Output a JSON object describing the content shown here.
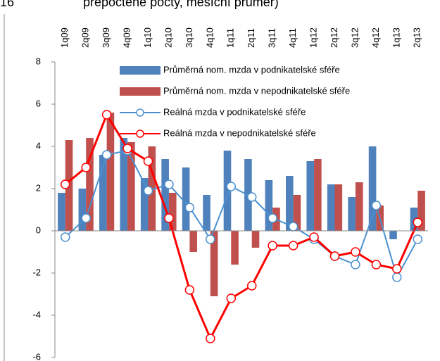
{
  "chart_data": {
    "type": "bar",
    "label": "16",
    "title": "přepočtené počty, měsíční průměr)",
    "categories": [
      "1q09",
      "2q09",
      "3q09",
      "4q09",
      "1q10",
      "2q10",
      "3q10",
      "4q10",
      "1q11",
      "2q11",
      "3q11",
      "4q11",
      "1q12",
      "2q12",
      "3q12",
      "4q12",
      "1q13",
      "2q13"
    ],
    "series": [
      {
        "name": "Průměrná nom. mzda v podnikatelské sféře",
        "type": "bar",
        "color": "#4f81bd",
        "values": [
          1.8,
          2.0,
          3.6,
          4.4,
          2.5,
          3.4,
          3.0,
          1.7,
          3.8,
          3.4,
          2.4,
          2.6,
          3.3,
          2.2,
          1.6,
          4.0,
          -0.4,
          1.1
        ]
      },
      {
        "name": "Průměrná nom. mzda v nepodnikatelské sféře",
        "type": "bar",
        "color": "#c0504d",
        "values": [
          4.3,
          4.4,
          5.6,
          4.2,
          4.0,
          1.8,
          -1.0,
          -3.1,
          -1.6,
          -0.8,
          1.1,
          1.7,
          3.4,
          2.2,
          2.3,
          1.2,
          0,
          1.9
        ]
      },
      {
        "name": "Reálná mzda v podnikatelské sféře",
        "type": "line",
        "color": "#4a90d0",
        "values": [
          -0.3,
          0.6,
          3.6,
          3.8,
          1.9,
          2.2,
          1.1,
          -0.4,
          2.1,
          1.6,
          0.6,
          0.2,
          -0.4,
          -1.2,
          -1.6,
          1.2,
          -2.2,
          -0.4
        ]
      },
      {
        "name": "Reálná mzda v nepodnikatelské sféře",
        "type": "line",
        "color": "#ff0000",
        "values": [
          2.2,
          3.0,
          5.5,
          3.9,
          3.3,
          0.6,
          -2.8,
          -5.1,
          -3.2,
          -2.6,
          -0.7,
          -0.7,
          -0.3,
          -1.2,
          -1.0,
          -1.6,
          -1.8,
          0.4
        ]
      }
    ],
    "ylim": [
      -6,
      8
    ],
    "yticks": [
      -6,
      -4,
      -2,
      0,
      2,
      4,
      6,
      8
    ]
  }
}
